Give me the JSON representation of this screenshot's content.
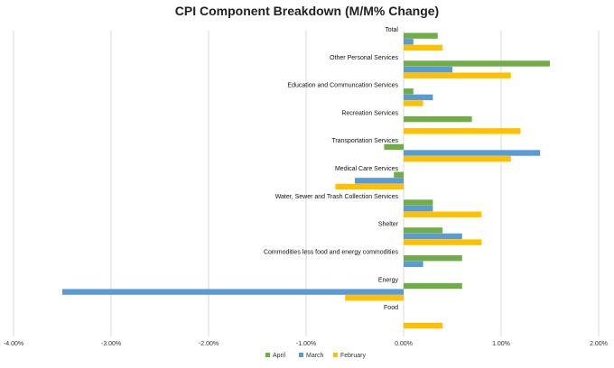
{
  "chart_data": {
    "type": "bar",
    "orientation": "horizontal",
    "title": "CPI Component Breakdown (M/M% Change)",
    "xlabel": "",
    "ylabel": "",
    "xlim": [
      -4.0,
      2.0
    ],
    "xticks": [
      -4.0,
      -3.0,
      -2.0,
      -1.0,
      0.0,
      1.0,
      2.0
    ],
    "xtick_labels": [
      "-4.00%",
      "-3.00%",
      "-2.00%",
      "-1.00%",
      "0.00%",
      "1.00%",
      "2.00%"
    ],
    "grid": "vertical",
    "legend_position": "bottom",
    "categories": [
      "Total",
      "Other Personal Services",
      "Education and Communcation Services",
      "Recreation Services",
      "Transportation Services",
      "Medical Care Services",
      "Water, Sewer and Trash Collection Services",
      "Shelter",
      "Commodities less food and energy commodities",
      "Energy",
      "Food"
    ],
    "series": [
      {
        "name": "April",
        "color": "#70ad47",
        "values": [
          0.35,
          1.5,
          0.1,
          0.7,
          -0.2,
          -0.1,
          0.3,
          0.4,
          0.6,
          0.6,
          0.0
        ]
      },
      {
        "name": "March",
        "color": "#5b9bd5",
        "values": [
          0.1,
          0.5,
          0.3,
          0.0,
          1.4,
          -0.5,
          0.3,
          0.6,
          0.2,
          -3.5,
          0.0
        ]
      },
      {
        "name": "February",
        "color": "#ffc000",
        "values": [
          0.4,
          1.1,
          0.2,
          1.2,
          1.1,
          -0.7,
          0.8,
          0.8,
          0.0,
          -0.6,
          0.4
        ]
      }
    ]
  }
}
